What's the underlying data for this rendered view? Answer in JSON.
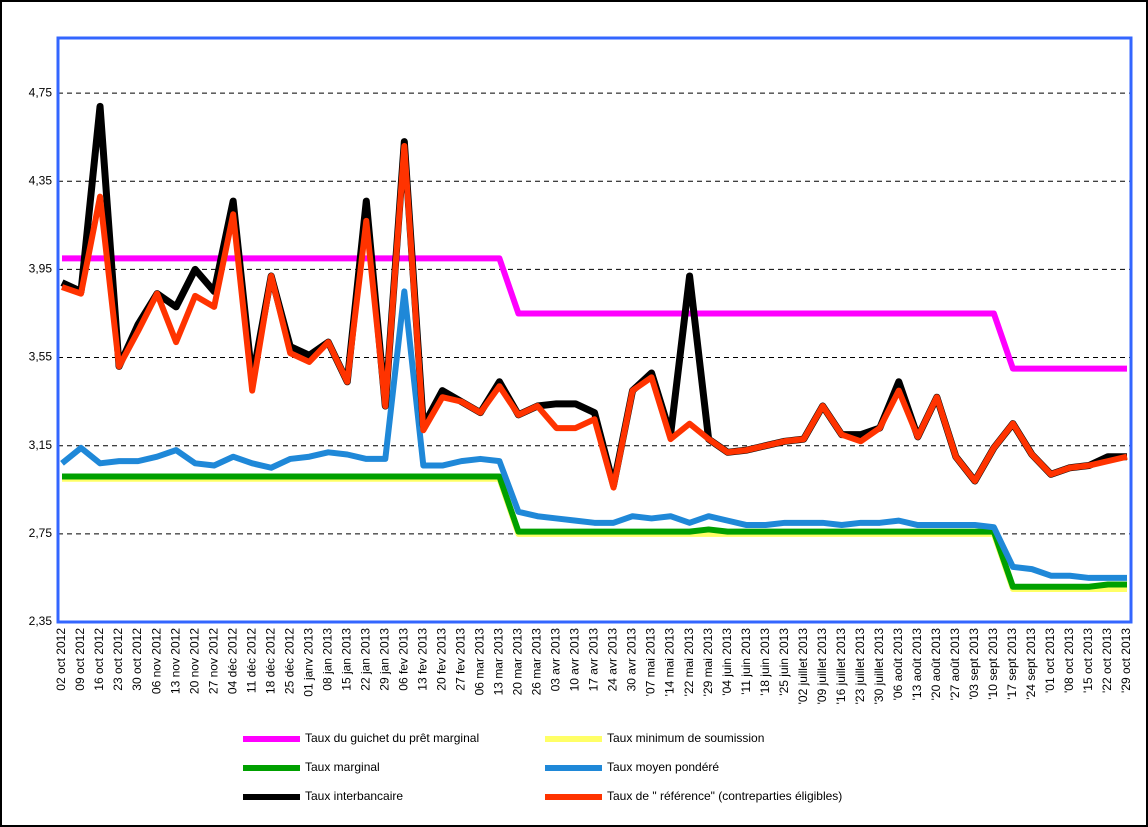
{
  "chart_data": {
    "type": "line",
    "categories": [
      "02 oct 2012",
      "09 oct 2012",
      "16 oct 2012",
      "23 oct 2012",
      "30 oct 2012",
      "06 nov 2012",
      "13 nov 2012",
      "20 nov 2012",
      "27 nov 2012",
      "04 déc 2012",
      "11 déc 2012",
      "18 déc 2012",
      "25 déc 2012",
      "01 janv 2013",
      "08 jan 2013",
      "15 jan 2013",
      "22 jan 2013",
      "29 jan 2013",
      "06 fev 2013",
      "13 fev 2013",
      "20 fev 2013",
      "27 fev 2013",
      "06 mar 2013",
      "13 mar 2013",
      "20 mar 2013",
      "26 mar 2013",
      "03 avr 2013",
      "10 avr 2013",
      "17 avr 2013",
      "24 avr 2013",
      "30 avr 2013",
      "'07 mai 2013",
      "'14 mai 2013",
      "'22 mai 2013",
      "'29 mai 2013",
      "'04 juin 2013",
      "'11 juin 2013",
      "'18 juin 2013",
      "'25 juin 2013",
      "'02 juillet 2013",
      "'09 juillet 2013",
      "'16 juillet 2013",
      "'23 juillet 2013",
      "'30 juillet 2013",
      "'06 août 2013",
      "'13 août 2013",
      "'20 août 2013",
      "'27 août 2013",
      "'03 sept 2013",
      "'10 sept 2013",
      "'17 sept 2013",
      "'24 sept 2013",
      "'01 oct 2013",
      "'08 oct 2013",
      "'15 oct 2013",
      "'22 oct 2013",
      "'29 oct 2013"
    ],
    "series": [
      {
        "name": "Taux du guichet du prêt marginal",
        "color": "#ff00ff",
        "values": [
          4.0,
          4.0,
          4.0,
          4.0,
          4.0,
          4.0,
          4.0,
          4.0,
          4.0,
          4.0,
          4.0,
          4.0,
          4.0,
          4.0,
          4.0,
          4.0,
          4.0,
          4.0,
          4.0,
          4.0,
          4.0,
          4.0,
          4.0,
          4.0,
          3.75,
          3.75,
          3.75,
          3.75,
          3.75,
          3.75,
          3.75,
          3.75,
          3.75,
          3.75,
          3.75,
          3.75,
          3.75,
          3.75,
          3.75,
          3.75,
          3.75,
          3.75,
          3.75,
          3.75,
          3.75,
          3.75,
          3.75,
          3.75,
          3.75,
          3.75,
          3.5,
          3.5,
          3.5,
          3.5,
          3.5,
          3.5,
          3.5
        ]
      },
      {
        "name": "Taux minimum de soumission",
        "color": "#ffff66",
        "values": [
          3.0,
          3.0,
          3.0,
          3.0,
          3.0,
          3.0,
          3.0,
          3.0,
          3.0,
          3.0,
          3.0,
          3.0,
          3.0,
          3.0,
          3.0,
          3.0,
          3.0,
          3.0,
          3.0,
          3.0,
          3.0,
          3.0,
          3.0,
          3.0,
          2.75,
          2.75,
          2.75,
          2.75,
          2.75,
          2.75,
          2.75,
          2.75,
          2.75,
          2.75,
          2.75,
          2.75,
          2.75,
          2.75,
          2.75,
          2.75,
          2.75,
          2.75,
          2.75,
          2.75,
          2.75,
          2.75,
          2.75,
          2.75,
          2.75,
          2.75,
          2.5,
          2.5,
          2.5,
          2.5,
          2.5,
          2.5,
          2.5
        ]
      },
      {
        "name": "Taux marginal",
        "color": "#00a000",
        "values": [
          3.01,
          3.01,
          3.01,
          3.01,
          3.01,
          3.01,
          3.01,
          3.01,
          3.01,
          3.01,
          3.01,
          3.01,
          3.01,
          3.01,
          3.01,
          3.01,
          3.01,
          3.01,
          3.01,
          3.01,
          3.01,
          3.01,
          3.01,
          3.01,
          2.76,
          2.76,
          2.76,
          2.76,
          2.76,
          2.76,
          2.76,
          2.76,
          2.76,
          2.76,
          2.77,
          2.76,
          2.76,
          2.76,
          2.76,
          2.76,
          2.76,
          2.76,
          2.76,
          2.76,
          2.76,
          2.76,
          2.76,
          2.76,
          2.76,
          2.76,
          2.51,
          2.51,
          2.51,
          2.51,
          2.51,
          2.52,
          2.52
        ]
      },
      {
        "name": "Taux moyen pondéré",
        "color": "#1f88d8",
        "values": [
          3.07,
          3.14,
          3.07,
          3.08,
          3.08,
          3.1,
          3.13,
          3.07,
          3.06,
          3.1,
          3.07,
          3.05,
          3.09,
          3.1,
          3.12,
          3.11,
          3.09,
          3.09,
          3.85,
          3.06,
          3.06,
          3.08,
          3.09,
          3.08,
          2.85,
          2.83,
          2.82,
          2.81,
          2.8,
          2.8,
          2.83,
          2.82,
          2.83,
          2.8,
          2.83,
          2.81,
          2.79,
          2.79,
          2.8,
          2.8,
          2.8,
          2.79,
          2.8,
          2.8,
          2.81,
          2.79,
          2.79,
          2.79,
          2.79,
          2.78,
          2.6,
          2.59,
          2.56,
          2.56,
          2.55,
          2.55,
          2.55
        ]
      },
      {
        "name": "Taux interbancaire",
        "color": "#000000",
        "values": [
          3.89,
          3.85,
          4.69,
          3.51,
          3.7,
          3.84,
          3.78,
          3.95,
          3.85,
          4.26,
          3.45,
          3.92,
          3.6,
          3.56,
          3.62,
          3.44,
          4.26,
          3.33,
          4.53,
          3.24,
          3.4,
          3.35,
          3.3,
          3.44,
          3.29,
          3.33,
          3.34,
          3.34,
          3.3,
          2.97,
          3.4,
          3.48,
          3.2,
          3.92,
          3.18,
          3.12,
          3.13,
          3.15,
          3.17,
          3.18,
          3.33,
          3.2,
          3.2,
          3.23,
          3.44,
          3.19,
          3.37,
          3.1,
          2.99,
          3.14,
          3.25,
          3.11,
          3.02,
          3.05,
          3.06,
          3.1,
          3.1
        ]
      },
      {
        "name": "Taux de \" référence\" (contreparties éligibles)",
        "color": "#ff3300",
        "values": [
          3.87,
          3.84,
          4.28,
          3.51,
          3.67,
          3.84,
          3.62,
          3.83,
          3.78,
          4.2,
          3.4,
          3.92,
          3.57,
          3.53,
          3.62,
          3.44,
          4.17,
          3.33,
          4.51,
          3.22,
          3.37,
          3.35,
          3.3,
          3.42,
          3.29,
          3.33,
          3.23,
          3.23,
          3.27,
          2.96,
          3.4,
          3.46,
          3.18,
          3.25,
          3.18,
          3.12,
          3.13,
          3.15,
          3.17,
          3.18,
          3.33,
          3.2,
          3.17,
          3.23,
          3.4,
          3.19,
          3.37,
          3.1,
          2.99,
          3.14,
          3.25,
          3.11,
          3.02,
          3.05,
          3.06,
          3.08,
          3.1
        ]
      }
    ],
    "ylim": [
      2.35,
      5.0
    ],
    "yticks": [
      {
        "value": 2.35,
        "label": "2,35"
      },
      {
        "value": 2.75,
        "label": "2,75"
      },
      {
        "value": 3.15,
        "label": "3,15"
      },
      {
        "value": 3.55,
        "label": "3,55"
      },
      {
        "value": 3.95,
        "label": "3,95"
      },
      {
        "value": 4.35,
        "label": "4,35"
      },
      {
        "value": 4.75,
        "label": "4,75"
      }
    ],
    "grid": true
  }
}
